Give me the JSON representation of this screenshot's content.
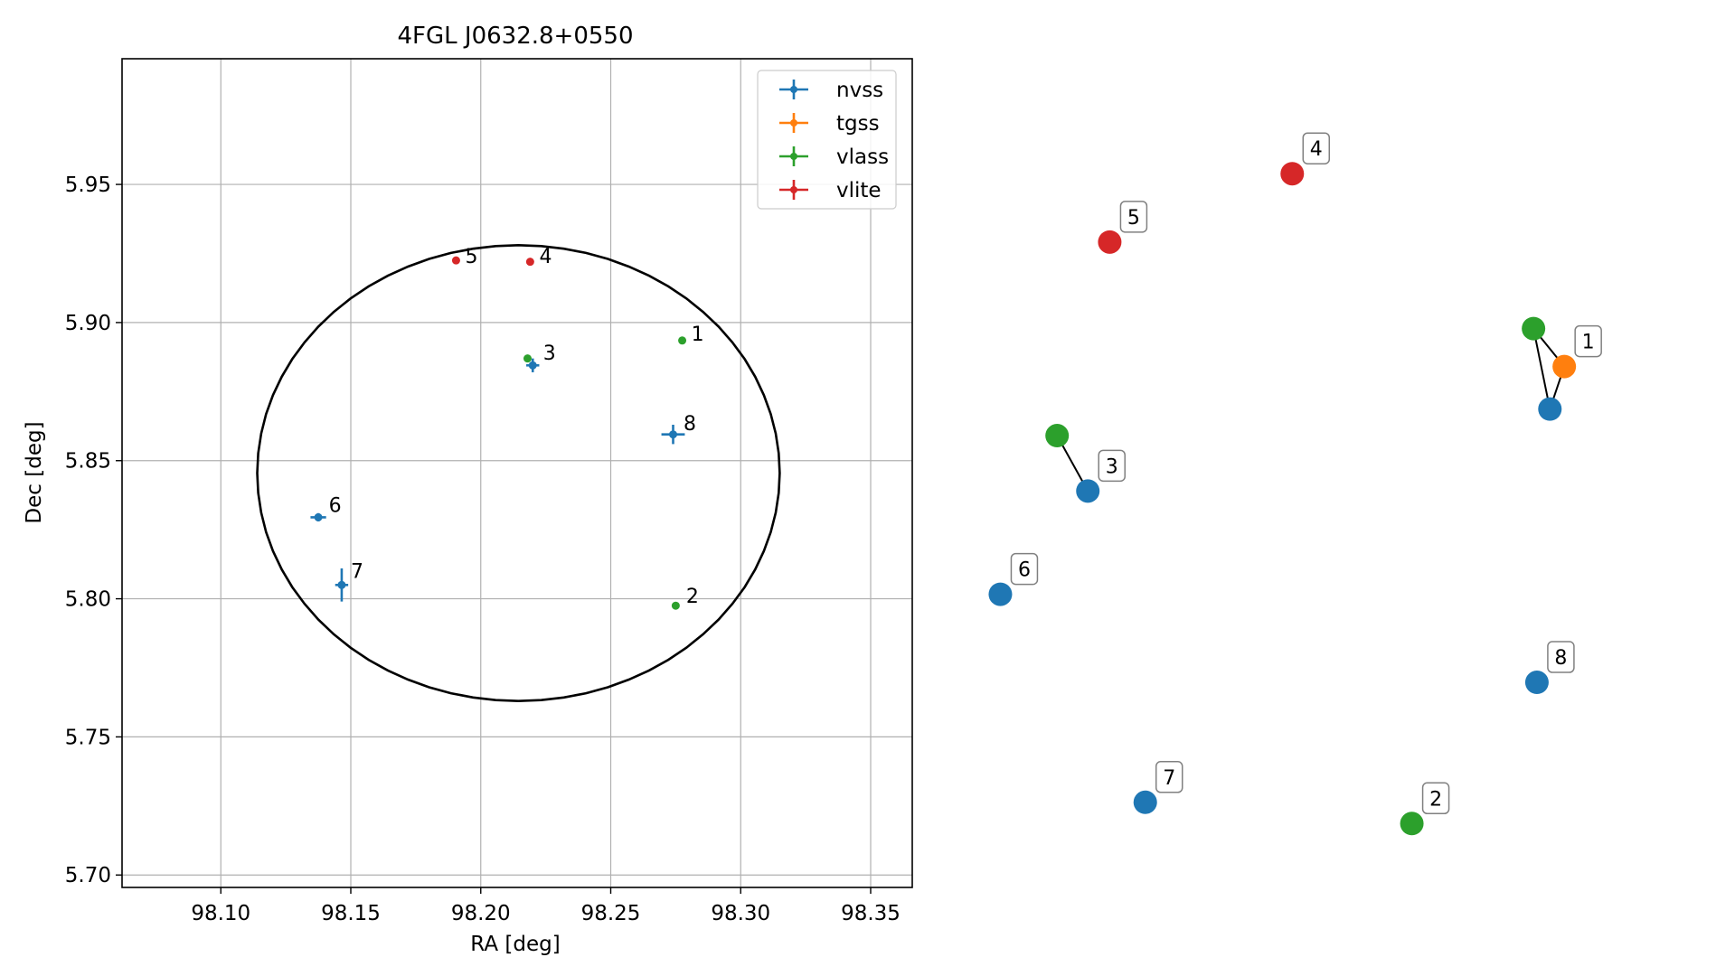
{
  "chart_data": [
    {
      "type": "scatter",
      "title": "4FGL J0632.8+0550",
      "xlabel": "RA [deg]",
      "ylabel": "Dec [deg]",
      "xlim": [
        98.062,
        98.366
      ],
      "ylim": [
        5.6955,
        5.9955
      ],
      "x_ticks": [
        98.1,
        98.15,
        98.2,
        98.25,
        98.3,
        98.35
      ],
      "x_tick_labels": [
        "98.10",
        "98.15",
        "98.20",
        "98.25",
        "98.30",
        "98.35"
      ],
      "y_ticks": [
        5.7,
        5.75,
        5.8,
        5.85,
        5.9,
        5.95
      ],
      "y_tick_labels": [
        "5.70",
        "5.75",
        "5.80",
        "5.85",
        "5.90",
        "5.95"
      ],
      "grid": true,
      "legend_position": "top-right",
      "ellipse": {
        "center_ra": 98.2145,
        "center_dec": 5.8455,
        "semi_ra": 0.1005,
        "semi_dec": 0.0825
      },
      "series": [
        {
          "name": "nvss",
          "color": "#1f77b4",
          "points": [
            {
              "id": "3",
              "ra": 98.22,
              "dec": 5.8845,
              "ra_err": 0.0025,
              "dec_err": 0.0025
            },
            {
              "id": "8",
              "ra": 98.274,
              "dec": 5.8595,
              "ra_err": 0.0045,
              "dec_err": 0.0035
            },
            {
              "id": "6",
              "ra": 98.1375,
              "dec": 5.8295,
              "ra_err": 0.003,
              "dec_err": 0.0015
            },
            {
              "id": "7",
              "ra": 98.1465,
              "dec": 5.805,
              "ra_err": 0.0025,
              "dec_err": 0.006
            }
          ]
        },
        {
          "name": "tgss",
          "color": "#ff7f0e",
          "points": []
        },
        {
          "name": "vlass",
          "color": "#2ca02c",
          "points": [
            {
              "id": "1",
              "ra": 98.2775,
              "dec": 5.8935,
              "ra_err": 0,
              "dec_err": 0
            },
            {
              "id": "3",
              "ra": 98.218,
              "dec": 5.887,
              "ra_err": 0,
              "dec_err": 0
            },
            {
              "id": "2",
              "ra": 98.275,
              "dec": 5.7975,
              "ra_err": 0,
              "dec_err": 0
            }
          ]
        },
        {
          "name": "vlite",
          "color": "#d62728",
          "points": [
            {
              "id": "5",
              "ra": 98.1905,
              "dec": 5.9225,
              "ra_err": 0,
              "dec_err": 0
            },
            {
              "id": "4",
              "ra": 98.219,
              "dec": 5.922,
              "ra_err": 0,
              "dec_err": 0
            }
          ]
        }
      ],
      "point_labels": [
        {
          "text": "1",
          "ra": 98.281,
          "dec": 5.8935
        },
        {
          "text": "2",
          "ra": 98.279,
          "dec": 5.7985
        },
        {
          "text": "3",
          "ra": 98.224,
          "dec": 5.8865
        },
        {
          "text": "4",
          "ra": 98.2225,
          "dec": 5.9215
        },
        {
          "text": "5",
          "ra": 98.194,
          "dec": 5.9215
        },
        {
          "text": "6",
          "ra": 98.1415,
          "dec": 5.8315
        },
        {
          "text": "7",
          "ra": 98.15,
          "dec": 5.8075
        },
        {
          "text": "8",
          "ra": 98.278,
          "dec": 5.861
        }
      ]
    },
    {
      "type": "scatter",
      "axes": "off",
      "xlim": [
        0,
        100
      ],
      "ylim": [
        0,
        100
      ],
      "nodes": [
        {
          "label": "4",
          "color": "#d62728",
          "x": 46.2,
          "y": 91.4
        },
        {
          "label": "5",
          "color": "#d62728",
          "x": 19.5,
          "y": 82.4
        },
        {
          "label": "1",
          "color": "#ff7f0e",
          "x": 86.0,
          "y": 66.0
        },
        {
          "label": "",
          "color": "#2ca02c",
          "x": 81.5,
          "y": 71.0
        },
        {
          "label": "",
          "color": "#1f77b4",
          "x": 83.9,
          "y": 60.4
        },
        {
          "label": "",
          "color": "#2ca02c",
          "x": 11.8,
          "y": 56.9
        },
        {
          "label": "3",
          "color": "#1f77b4",
          "x": 16.3,
          "y": 49.6
        },
        {
          "label": "6",
          "color": "#1f77b4",
          "x": 3.5,
          "y": 36.0
        },
        {
          "label": "8",
          "color": "#1f77b4",
          "x": 82.0,
          "y": 24.4
        },
        {
          "label": "7",
          "color": "#1f77b4",
          "x": 24.7,
          "y": 8.6
        },
        {
          "label": "2",
          "color": "#2ca02c",
          "x": 63.7,
          "y": 5.8
        }
      ],
      "edges": [
        [
          3,
          2
        ],
        [
          3,
          4
        ],
        [
          2,
          4
        ],
        [
          5,
          6
        ]
      ]
    }
  ]
}
